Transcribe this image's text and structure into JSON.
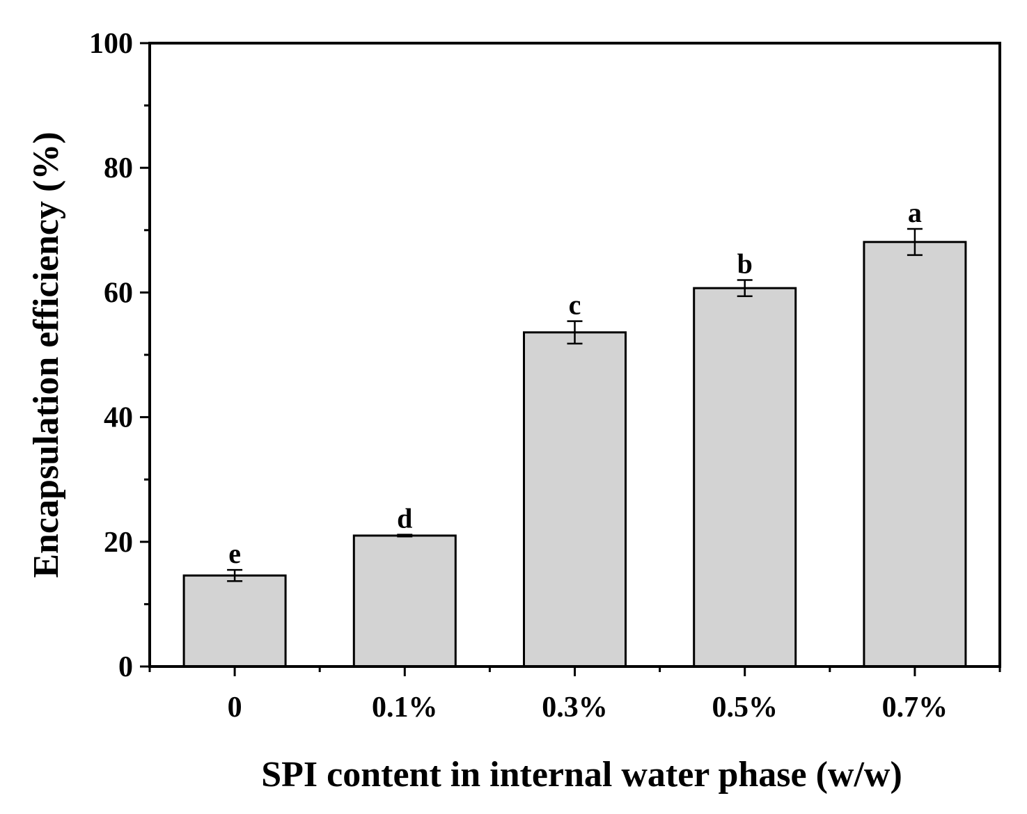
{
  "chart_data": {
    "type": "bar",
    "title": "",
    "xlabel": "SPI content in internal water phase (w/w)",
    "ylabel": "Encapsulation efficiency (%)",
    "categories": [
      "0",
      "0.1%",
      "0.3%",
      "0.5%",
      "0.7%"
    ],
    "values": [
      14.6,
      21.0,
      53.6,
      60.7,
      68.1
    ],
    "errors": [
      0.9,
      0.15,
      1.8,
      1.3,
      2.1
    ],
    "significance_labels": [
      "e",
      "d",
      "c",
      "b",
      "a"
    ],
    "ylim": [
      0,
      100
    ],
    "yticks": [
      0,
      20,
      40,
      60,
      80,
      100
    ],
    "yticklabels": [
      "0",
      "20",
      "40",
      "60",
      "80",
      "100"
    ],
    "bar_color": "#d3d3d3",
    "edge_color": "#000000",
    "grid": false
  }
}
